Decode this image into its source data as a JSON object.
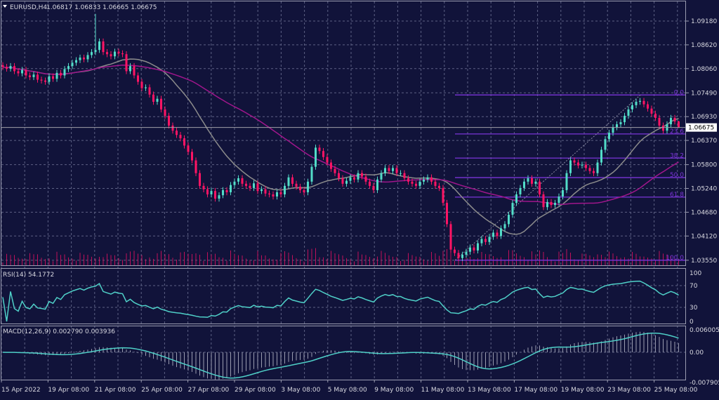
{
  "header": {
    "symbol": "EURUSD,H4",
    "ohlc": "1.06817 1.06833 1.06665 1.06675"
  },
  "colors": {
    "background": "#11133a",
    "bull": "#52dcc8",
    "bear": "#ff1464",
    "sma_fast": "#8c8c8c",
    "sma_slow": "#a0168c",
    "fibo": "#7a34d8",
    "rsi": "#4fd0c8",
    "macd": "#4fd0c8",
    "volume": "#c0105a"
  },
  "chart_data": [
    {
      "type": "candlestick",
      "title": "EURUSD,H4",
      "last": {
        "open": 1.06817,
        "high": 1.06833,
        "low": 1.06665,
        "close": 1.06675
      },
      "current_price_label": "1.06675",
      "y_ticks": [
        "1.09180",
        "1.08620",
        "1.08060",
        "1.07490",
        "1.06930",
        "1.06370",
        "1.05800",
        "1.05240",
        "1.04680",
        "1.04120",
        "1.03550"
      ],
      "ylim": [
        1.0345,
        1.0965
      ],
      "x_ticks": [
        "15 Apr 2022",
        "19 Apr 08:00",
        "21 Apr 08:00",
        "25 Apr 08:00",
        "27 Apr 08:00",
        "29 Apr 08:00",
        "3 May 08:00",
        "5 May 08:00",
        "9 May 08:00",
        "11 May 08:00",
        "13 May 08:00",
        "17 May 08:00",
        "19 May 08:00",
        "23 May 08:00",
        "25 May 08:00"
      ],
      "grid": true,
      "spike_high": {
        "index": 24,
        "high": 1.0935
      },
      "closes": [
        1.081,
        1.0806,
        1.0812,
        1.08,
        1.0795,
        1.0803,
        1.079,
        1.0786,
        1.0792,
        1.078,
        1.0778,
        1.0775,
        1.0788,
        1.0782,
        1.0796,
        1.079,
        1.0805,
        1.0812,
        1.082,
        1.0826,
        1.0832,
        1.0828,
        1.0838,
        1.0845,
        1.085,
        1.087,
        1.0845,
        1.084,
        1.0835,
        1.0846,
        1.0842,
        1.084,
        1.08,
        1.0812,
        1.079,
        1.0775,
        1.076,
        1.0762,
        1.0745,
        1.0728,
        1.0735,
        1.071,
        1.0695,
        1.0672,
        1.066,
        1.065,
        1.0642,
        1.0625,
        1.061,
        1.059,
        1.056,
        1.053,
        1.0522,
        1.051,
        1.0518,
        1.05,
        1.0508,
        1.052,
        1.0515,
        1.0532,
        1.054,
        1.0548,
        1.0535,
        1.053,
        1.0525,
        1.0536,
        1.0518,
        1.0522,
        1.0512,
        1.051,
        1.0505,
        1.0515,
        1.051,
        1.053,
        1.055,
        1.0535,
        1.0528,
        1.052,
        1.0515,
        1.054,
        1.0575,
        1.062,
        1.0612,
        1.0598,
        1.0585,
        1.057,
        1.056,
        1.0548,
        1.0535,
        1.0542,
        1.055,
        1.0545,
        1.056,
        1.0552,
        1.054,
        1.053,
        1.052,
        1.0545,
        1.056,
        1.0572,
        1.0565,
        1.0572,
        1.056,
        1.056,
        1.0548,
        1.054,
        1.0535,
        1.053,
        1.054,
        1.0545,
        1.055,
        1.054,
        1.053,
        1.0525,
        1.049,
        1.044,
        1.038,
        1.0372,
        1.036,
        1.0368,
        1.0375,
        1.0385,
        1.0378,
        1.0395,
        1.0405,
        1.0398,
        1.041,
        1.042,
        1.0412,
        1.043,
        1.044,
        1.0462,
        1.049,
        1.051,
        1.0525,
        1.054,
        1.0548,
        1.0535,
        1.054,
        1.051,
        1.048,
        1.0492,
        1.0485,
        1.049,
        1.0505,
        1.052,
        1.056,
        1.059,
        1.0585,
        1.0578,
        1.058,
        1.0572,
        1.0565,
        1.056,
        1.0585,
        1.0615,
        1.064,
        1.0655,
        1.0668,
        1.0675,
        1.068,
        1.0695,
        1.071,
        1.072,
        1.0728,
        1.073,
        1.0722,
        1.0712,
        1.07,
        1.069,
        1.0672,
        1.066,
        1.0675,
        1.069,
        1.06817,
        1.06675
      ],
      "fibonacci": {
        "high": 1.0744,
        "low": 1.0355,
        "levels": [
          {
            "label": "0.0",
            "ratio": 0
          },
          {
            "label": "23.6",
            "ratio": 0.236
          },
          {
            "label": "38.2",
            "ratio": 0.382
          },
          {
            "label": "50.0",
            "ratio": 0.5
          },
          {
            "label": "61.8",
            "ratio": 0.618
          },
          {
            "label": "100.0",
            "ratio": 1
          }
        ]
      }
    },
    {
      "type": "line",
      "title": "RSI(14) 54.1772",
      "ylim": [
        0,
        100
      ],
      "y_ticks": [
        "100",
        "70",
        "30",
        "0"
      ]
    },
    {
      "type": "bar+line",
      "title": "MACD(12,26,9) 0.002790 0.003936",
      "ylim": [
        -0.007905,
        0.006005
      ],
      "y_ticks": [
        "0.006005",
        "0.00",
        "-0.007905"
      ]
    }
  ]
}
